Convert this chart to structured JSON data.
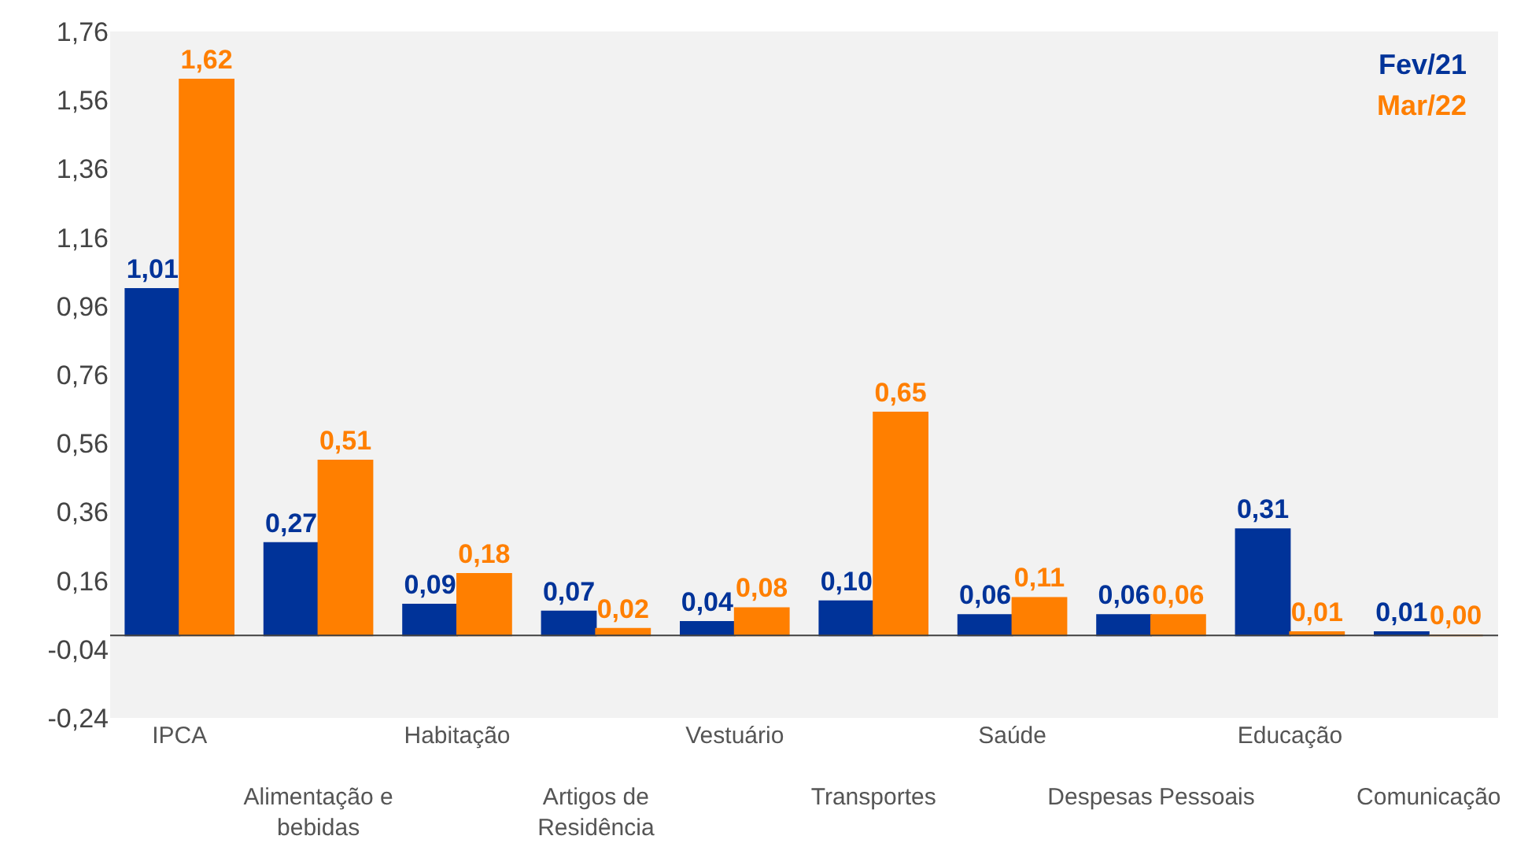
{
  "chart_data": {
    "type": "bar",
    "categories": [
      "IPCA",
      "Alimentação e\nbebidas",
      "Habitação",
      "Artigos de\nResidência",
      "Vestuário",
      "Transportes",
      "Saúde",
      "Despesas Pessoais",
      "Educação",
      "Comunicação"
    ],
    "series": [
      {
        "name": "Fev/21",
        "color": "#003399",
        "values": [
          1.01,
          0.27,
          0.09,
          0.07,
          0.04,
          0.1,
          0.06,
          0.06,
          0.31,
          0.01
        ],
        "value_labels": [
          "1,01",
          "0,27",
          "0,09",
          "0,07",
          "0,04",
          "0,10",
          "0,06",
          "0,06",
          "0,31",
          "0,01"
        ]
      },
      {
        "name": "Mar/22",
        "color": "#ff7f00",
        "values": [
          1.62,
          0.51,
          0.18,
          0.02,
          0.08,
          0.65,
          0.11,
          0.06,
          0.01,
          0.0
        ],
        "value_labels": [
          "1,62",
          "0,51",
          "0,18",
          "0,02",
          "0,08",
          "0,65",
          "0,11",
          "0,06",
          "0,01",
          "0,00"
        ]
      }
    ],
    "ylim": [
      -0.24,
      1.76
    ],
    "yticks": [
      {
        "value": -0.24,
        "label": "-0,24"
      },
      {
        "value": -0.04,
        "label": "-0,04"
      },
      {
        "value": 0.16,
        "label": "0,16"
      },
      {
        "value": 0.36,
        "label": "0,36"
      },
      {
        "value": 0.56,
        "label": "0,56"
      },
      {
        "value": 0.76,
        "label": "0,76"
      },
      {
        "value": 0.96,
        "label": "0,96"
      },
      {
        "value": 1.16,
        "label": "1,16"
      },
      {
        "value": 1.36,
        "label": "1,36"
      },
      {
        "value": 1.56,
        "label": "1,56"
      },
      {
        "value": 1.76,
        "label": "1,76"
      }
    ],
    "grid": false,
    "legend": "top right"
  }
}
